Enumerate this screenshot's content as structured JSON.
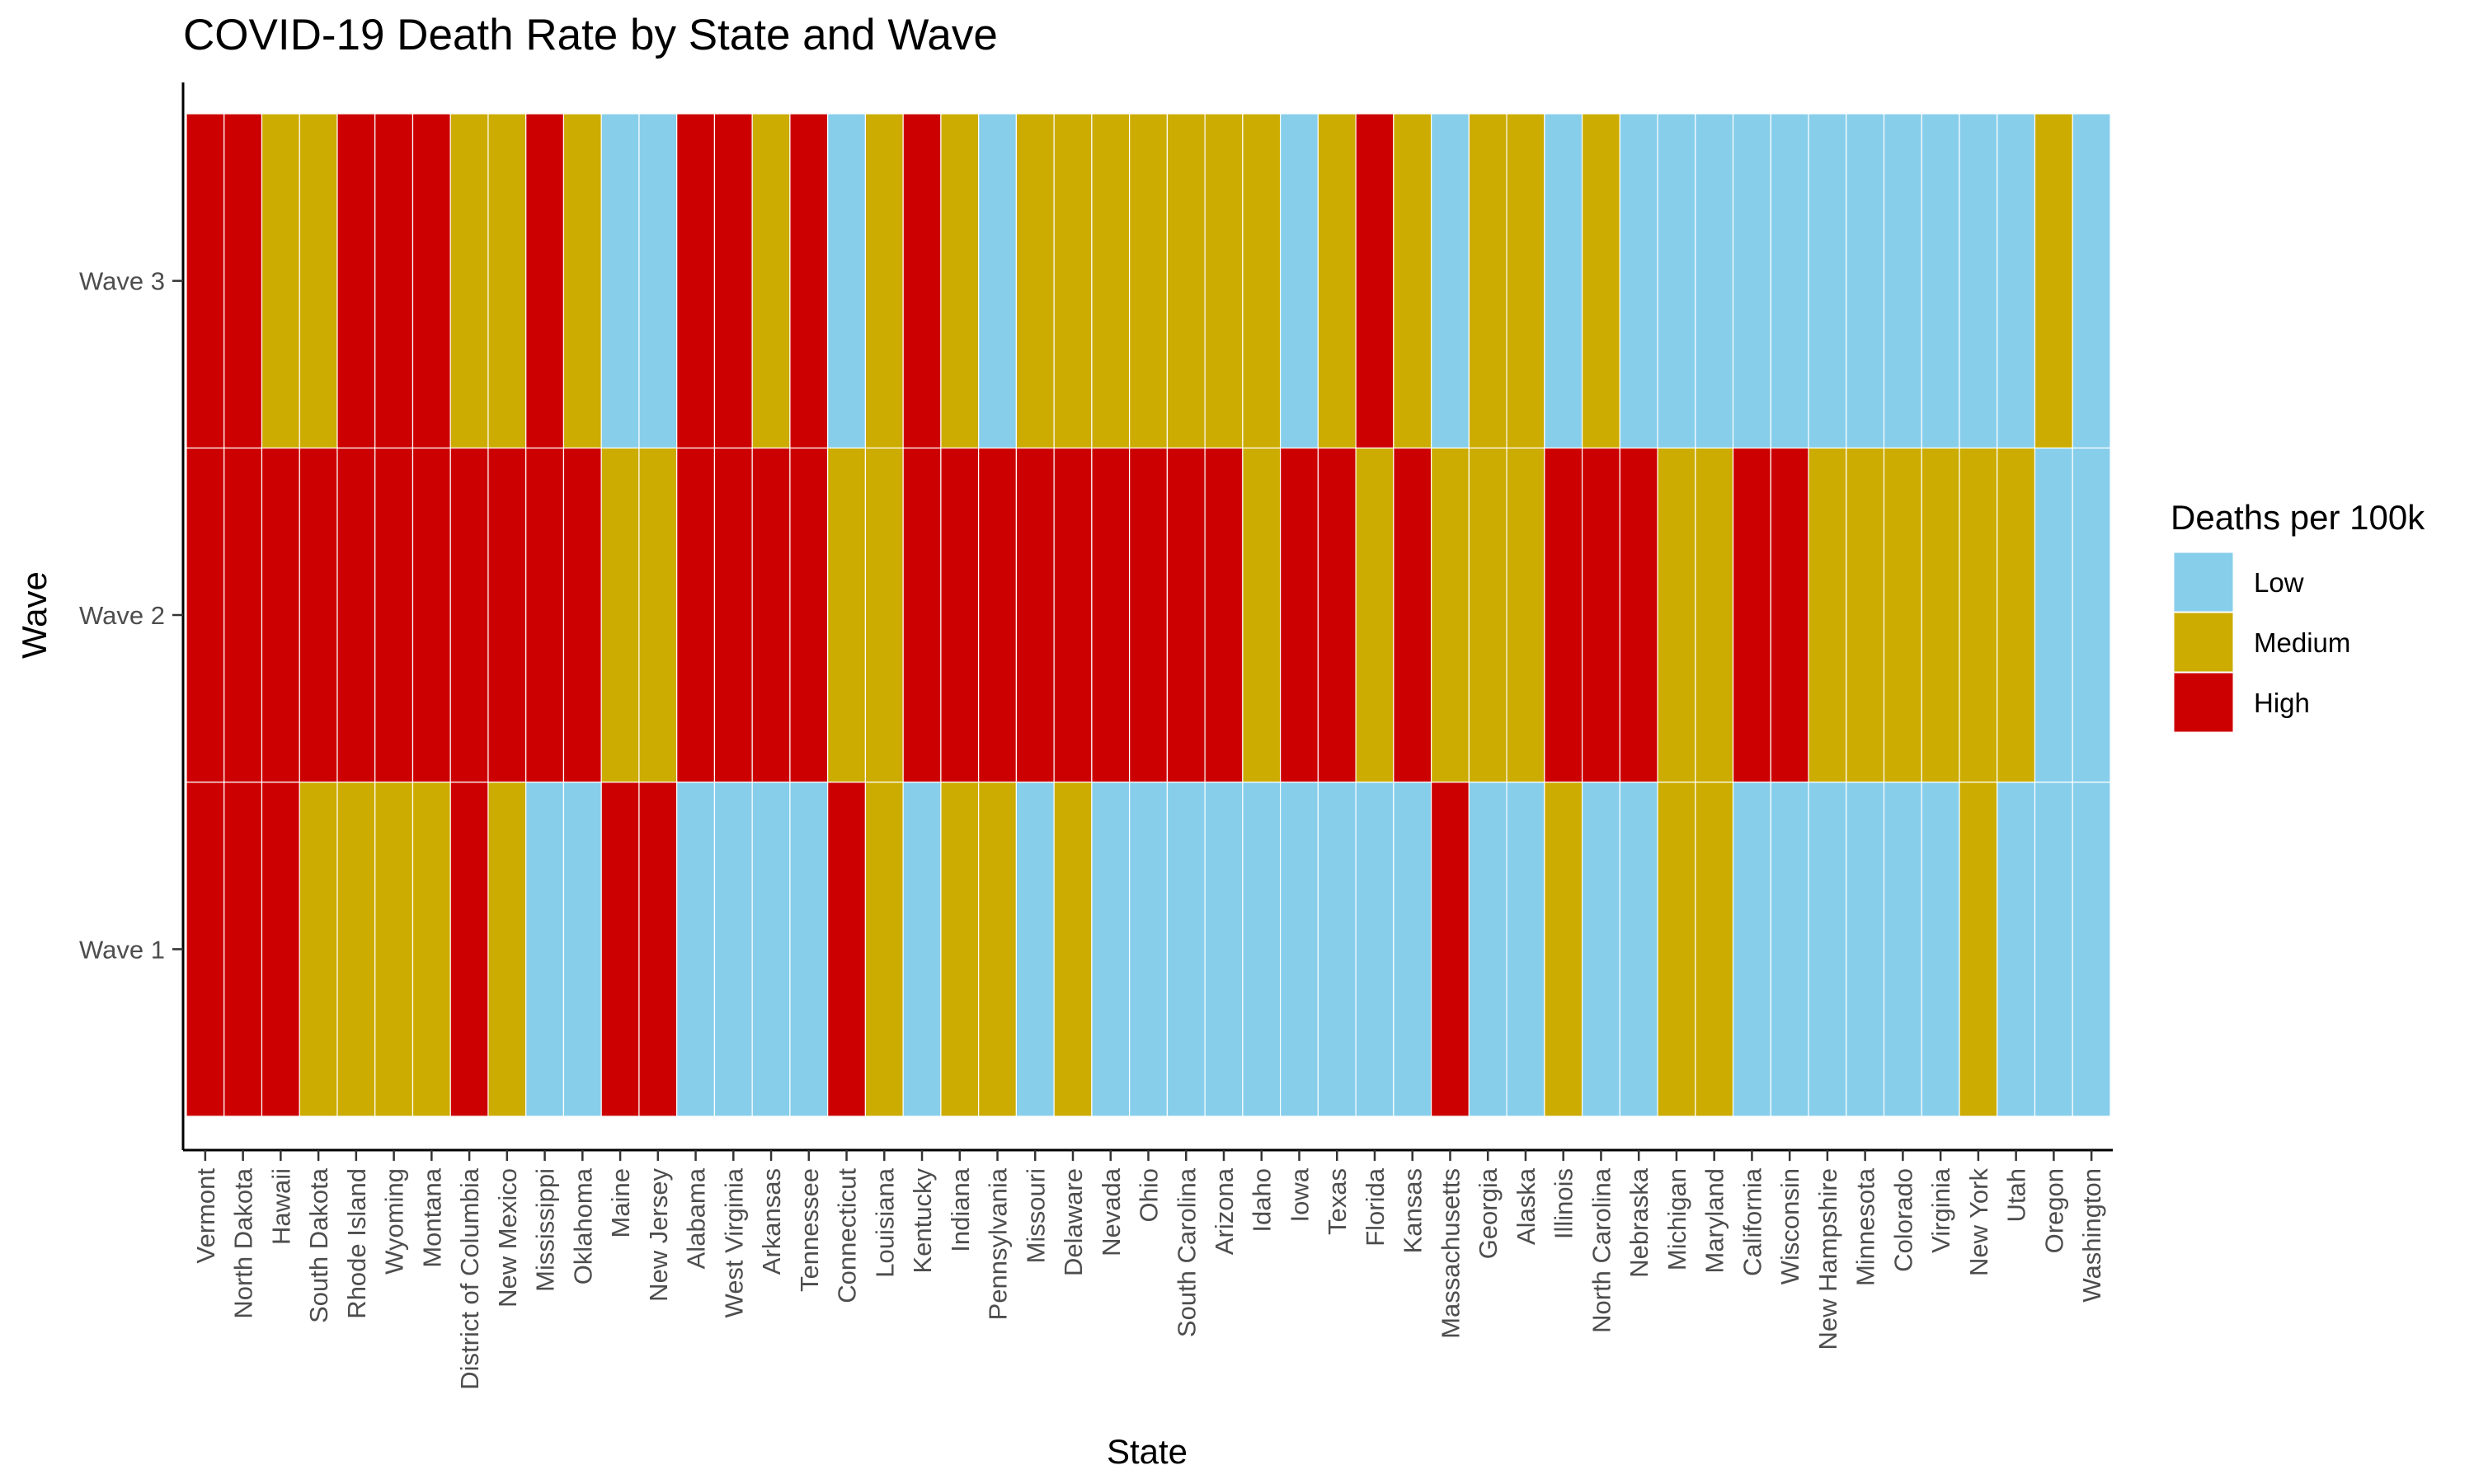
{
  "chart_data": {
    "type": "heatmap",
    "title": "COVID-19 Death Rate by State and Wave",
    "xlabel": "State",
    "ylabel": "Wave",
    "states": [
      "Vermont",
      "North Dakota",
      "Hawaii",
      "South Dakota",
      "Rhode Island",
      "Wyoming",
      "Montana",
      "District of Columbia",
      "New Mexico",
      "Mississippi",
      "Oklahoma",
      "Maine",
      "New Jersey",
      "Alabama",
      "West Virginia",
      "Arkansas",
      "Tennessee",
      "Connecticut",
      "Louisiana",
      "Kentucky",
      "Indiana",
      "Pennsylvania",
      "Missouri",
      "Delaware",
      "Nevada",
      "Ohio",
      "South Carolina",
      "Arizona",
      "Idaho",
      "Iowa",
      "Texas",
      "Florida",
      "Kansas",
      "Massachusetts",
      "Georgia",
      "Alaska",
      "Illinois",
      "North Carolina",
      "Nebraska",
      "Michigan",
      "Maryland",
      "California",
      "Wisconsin",
      "New Hampshire",
      "Minnesota",
      "Colorado",
      "Virginia",
      "New York",
      "Utah",
      "Oregon",
      "Washington"
    ],
    "waves": [
      "Wave 1",
      "Wave 2",
      "Wave 3"
    ],
    "values": {
      "Wave 1": [
        "High",
        "High",
        "High",
        "Medium",
        "Medium",
        "Medium",
        "Medium",
        "High",
        "Medium",
        "Low",
        "Low",
        "High",
        "High",
        "Low",
        "Low",
        "Low",
        "Low",
        "High",
        "Medium",
        "Low",
        "Medium",
        "Medium",
        "Low",
        "Medium",
        "Low",
        "Low",
        "Low",
        "Low",
        "Low",
        "Low",
        "Low",
        "Low",
        "Low",
        "High",
        "Low",
        "Low",
        "Medium",
        "Low",
        "Low",
        "Medium",
        "Medium",
        "Low",
        "Low",
        "Low",
        "Low",
        "Low",
        "Low",
        "Medium",
        "Low",
        "Low",
        "Low"
      ],
      "Wave 2": [
        "High",
        "High",
        "High",
        "High",
        "High",
        "High",
        "High",
        "High",
        "High",
        "High",
        "High",
        "Medium",
        "Medium",
        "High",
        "High",
        "High",
        "High",
        "Medium",
        "Medium",
        "High",
        "High",
        "High",
        "High",
        "High",
        "High",
        "High",
        "High",
        "High",
        "Medium",
        "High",
        "High",
        "Medium",
        "High",
        "Medium",
        "Medium",
        "Medium",
        "High",
        "High",
        "High",
        "Medium",
        "Medium",
        "High",
        "High",
        "Medium",
        "Medium",
        "Medium",
        "Medium",
        "Medium",
        "Medium",
        "Low",
        "Low"
      ],
      "Wave 3": [
        "High",
        "High",
        "Medium",
        "Medium",
        "High",
        "High",
        "High",
        "Medium",
        "Medium",
        "High",
        "Medium",
        "Low",
        "Low",
        "High",
        "High",
        "Medium",
        "High",
        "Low",
        "Medium",
        "High",
        "Medium",
        "Low",
        "Medium",
        "Medium",
        "Medium",
        "Medium",
        "Medium",
        "Medium",
        "Medium",
        "Low",
        "Medium",
        "High",
        "Medium",
        "Low",
        "Medium",
        "Medium",
        "Low",
        "Medium",
        "Low",
        "Low",
        "Low",
        "Low",
        "Low",
        "Low",
        "Low",
        "Low",
        "Low",
        "Low",
        "Low",
        "Medium",
        "Low"
      ]
    },
    "legend": {
      "title": "Deaths per 100k",
      "position": "right",
      "categories": [
        "Low",
        "Medium",
        "High"
      ]
    },
    "colors": {
      "Low": "#87CEEB",
      "Medium": "#CCAC00",
      "High": "#CC0000"
    },
    "grid": false
  }
}
